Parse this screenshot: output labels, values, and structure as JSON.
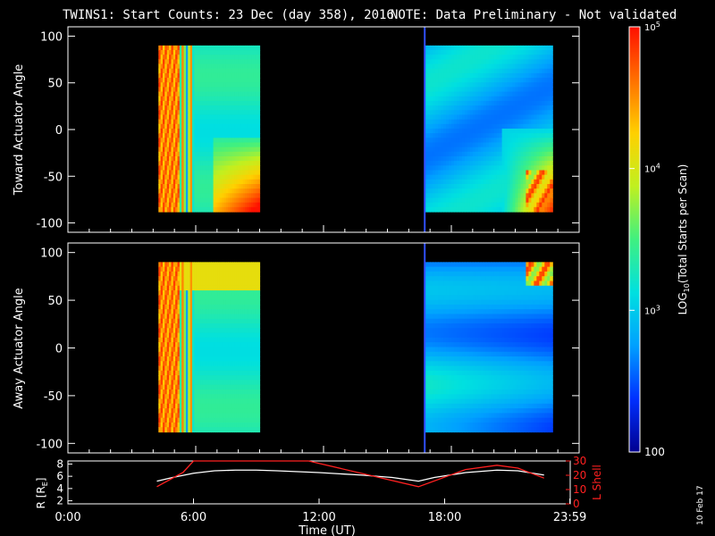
{
  "title": {
    "main": "TWINS1: Start Counts: 23 Dec (day 358), 2016",
    "note": "NOTE: Data Preliminary - Not validated",
    "note_color": "#ff2020"
  },
  "stamp": "10 Feb 17",
  "colors": {
    "axis": "#ffffff",
    "marker_line": "#3050ff",
    "r_line": "#ffffff",
    "lshell_line": "#ff2020",
    "scale": [
      "#000090",
      "#0030ff",
      "#00a0ff",
      "#00e0e0",
      "#40f080",
      "#c0f020",
      "#ffd000",
      "#ff7000",
      "#ff1000"
    ]
  },
  "chart_data": [
    {
      "type": "heatmap",
      "panel": "toward",
      "ylabel": "Toward Actuator Angle",
      "ylim": [
        -110,
        110
      ],
      "yticks": [
        "100",
        "50",
        "0",
        "-50",
        "-100"
      ],
      "xlim_hours": [
        0,
        24
      ],
      "data_blocks": [
        {
          "start_hour": 4.25,
          "end_hour": 9.0,
          "angle_range": [
            -88,
            90
          ]
        },
        {
          "start_hour": 16.75,
          "end_hour": 22.75,
          "angle_range": [
            -88,
            90
          ]
        }
      ]
    },
    {
      "type": "heatmap",
      "panel": "away",
      "ylabel": "Away Actuator Angle",
      "ylim": [
        -110,
        110
      ],
      "yticks": [
        "100",
        "50",
        "0",
        "-50",
        "-100"
      ],
      "xlim_hours": [
        0,
        24
      ],
      "data_blocks": [
        {
          "start_hour": 4.25,
          "end_hour": 9.0,
          "angle_range": [
            -88,
            90
          ]
        },
        {
          "start_hour": 16.75,
          "end_hour": 22.75,
          "angle_range": [
            -88,
            90
          ]
        }
      ]
    },
    {
      "type": "line",
      "panel": "orbit",
      "ylabel_left": "R [R",
      "ylabel_left_sub": "E",
      "ylabel_left_close": "]",
      "ylabel_right": "L Shell",
      "yticks_left": [
        "8",
        "6",
        "4",
        "2"
      ],
      "yticks_right": [
        "30",
        "20",
        "10",
        "0"
      ],
      "ylim_left": [
        1.5,
        8.5
      ],
      "ylim_right": [
        0,
        30
      ],
      "series": [
        {
          "name": "R",
          "x": [
            4.25,
            5,
            6,
            7,
            8,
            9,
            10,
            12,
            14,
            15.5,
            16.75,
            17.5,
            19,
            20.5,
            21.5,
            22.75
          ],
          "y": [
            5.2,
            5.8,
            6.5,
            6.9,
            7.0,
            7.0,
            6.9,
            6.6,
            6.2,
            5.8,
            5.2,
            5.8,
            6.6,
            7.0,
            6.9,
            6.2
          ]
        },
        {
          "name": "L Shell",
          "x": [
            4.25,
            5.5,
            6.0,
            11.5,
            16.75,
            19,
            20.5,
            21.5,
            22.75
          ],
          "y": [
            12,
            22,
            30,
            30,
            12,
            24,
            27,
            25,
            18
          ]
        }
      ],
      "xticks": [
        "0:00",
        "6:00",
        "12:00",
        "18:00",
        "23:59"
      ],
      "xlabel": "Time (UT)"
    }
  ],
  "colorbar": {
    "label_pre": "LOG",
    "label_sub": "10",
    "label_post": "(Total Starts per Scan)",
    "ticks": [
      {
        "base": "10",
        "exp": "5",
        "value": 100000
      },
      {
        "base": "10",
        "exp": "4",
        "value": 10000
      },
      {
        "base": "10",
        "exp": "3",
        "value": 1000
      }
    ],
    "bottom_label": "100",
    "range_log": [
      2,
      5
    ]
  },
  "vertical_marker_hour": 16.75
}
